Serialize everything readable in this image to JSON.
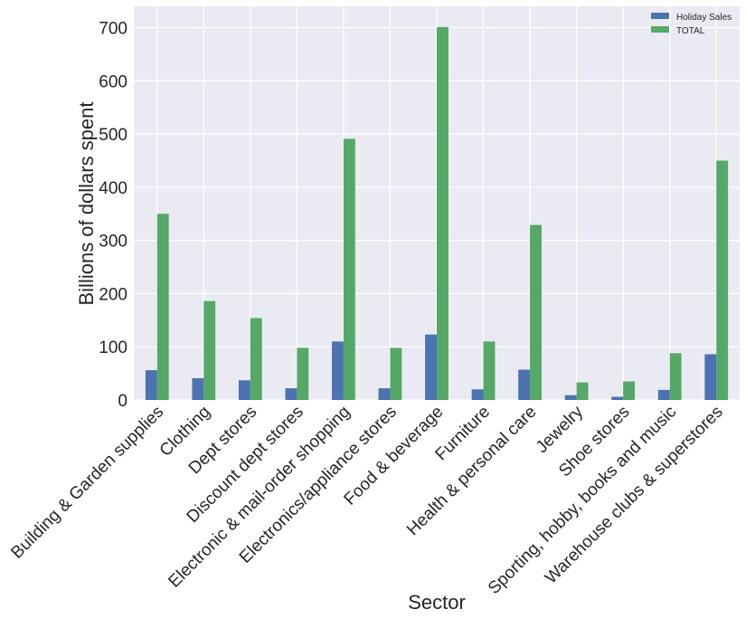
{
  "chart_data": {
    "type": "bar",
    "title": "",
    "xlabel": "Sector",
    "ylabel": "Billions of dollars spent",
    "ylim": [
      0,
      740
    ],
    "yticks": [
      0,
      100,
      200,
      300,
      400,
      500,
      600,
      700
    ],
    "grid": true,
    "legend_position": "top-right",
    "categories": [
      "Building & Garden supplies",
      "Clothing",
      "Dept stores",
      "Discount dept stores",
      "Electronic & mail-order shopping",
      "Electronics/appliance stores",
      "Food & beverage",
      "Furniture",
      "Health & personal care",
      "Jewelry",
      "Shoe stores",
      "Sporting, hobby, books and music",
      "Warehouse clubs & superstores"
    ],
    "series": [
      {
        "name": "Holiday Sales",
        "color": "#4c72b0",
        "values": [
          56,
          41,
          37,
          22,
          110,
          22,
          123,
          20,
          57,
          9,
          6,
          19,
          86
        ]
      },
      {
        "name": "TOTAL",
        "color": "#55a868",
        "values": [
          350,
          186,
          154,
          98,
          491,
          98,
          701,
          110,
          329,
          33,
          35,
          88,
          450
        ]
      }
    ]
  }
}
